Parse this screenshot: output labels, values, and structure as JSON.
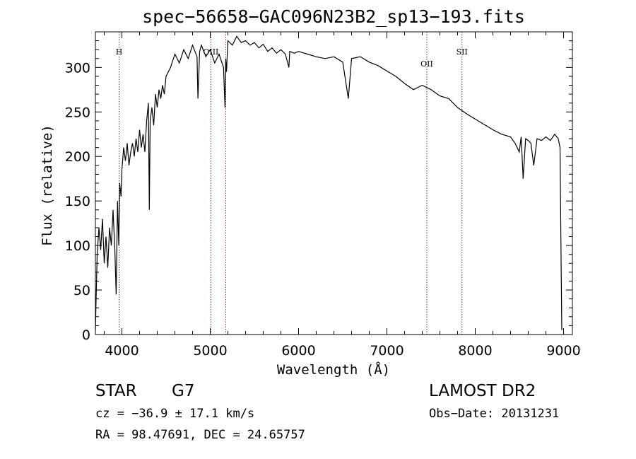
{
  "chart_data": {
    "type": "line",
    "title": "spec−56658−GAC096N23B2_sp13−193.fits",
    "xlabel": "Wavelength (Å)",
    "ylabel": "Flux (relative)",
    "xlim": [
      3700,
      9100
    ],
    "ylim": [
      0,
      340
    ],
    "x_ticks": [
      4000,
      5000,
      6000,
      7000,
      8000,
      9000
    ],
    "y_ticks": [
      0,
      50,
      100,
      150,
      200,
      250,
      300
    ],
    "grid": false,
    "series": [
      {
        "x": [
          3700,
          3720,
          3740,
          3760,
          3780,
          3800,
          3820,
          3840,
          3860,
          3880,
          3900,
          3920,
          3935,
          3950,
          3965,
          3975,
          3990,
          4000,
          4020,
          4040,
          4060,
          4080,
          4100,
          4120,
          4140,
          4160,
          4180,
          4200,
          4220,
          4240,
          4260,
          4280,
          4300,
          4310,
          4320,
          4340,
          4360,
          4380,
          4400,
          4420,
          4440,
          4460,
          4480,
          4500,
          4550,
          4600,
          4650,
          4700,
          4750,
          4800,
          4850,
          4861,
          4880,
          4900,
          4950,
          5000,
          5050,
          5100,
          5150,
          5167,
          5175,
          5184,
          5200,
          5250,
          5300,
          5350,
          5400,
          5450,
          5500,
          5550,
          5600,
          5650,
          5700,
          5750,
          5800,
          5850,
          5890,
          5900,
          5950,
          6000,
          6100,
          6200,
          6300,
          6400,
          6500,
          6563,
          6600,
          6700,
          6800,
          6900,
          7000,
          7100,
          7200,
          7300,
          7400,
          7500,
          7600,
          7700,
          7800,
          7900,
          8000,
          8100,
          8200,
          8300,
          8400,
          8450,
          8498,
          8520,
          8542,
          8570,
          8600,
          8630,
          8662,
          8700,
          8750,
          8800,
          8850,
          8900,
          8940,
          8960,
          8970,
          8980
        ],
        "y": [
          5,
          90,
          120,
          95,
          130,
          80,
          110,
          75,
          120,
          100,
          140,
          95,
          45,
          150,
          100,
          170,
          155,
          185,
          210,
          195,
          215,
          190,
          205,
          215,
          200,
          220,
          205,
          230,
          210,
          225,
          205,
          240,
          260,
          140,
          240,
          255,
          235,
          270,
          255,
          275,
          265,
          280,
          270,
          290,
          300,
          315,
          305,
          320,
          310,
          325,
          312,
          265,
          318,
          325,
          312,
          320,
          305,
          315,
          300,
          255,
          310,
          295,
          330,
          325,
          335,
          328,
          330,
          325,
          328,
          322,
          326,
          318,
          322,
          316,
          320,
          315,
          300,
          318,
          316,
          318,
          315,
          312,
          310,
          312,
          306,
          265,
          310,
          312,
          306,
          302,
          296,
          290,
          282,
          275,
          280,
          275,
          268,
          265,
          255,
          248,
          242,
          236,
          230,
          225,
          222,
          215,
          205,
          222,
          175,
          220,
          218,
          215,
          190,
          220,
          218,
          222,
          218,
          225,
          220,
          210,
          100,
          5
        ]
      }
    ],
    "reference_lines": [
      {
        "x": 3968,
        "label": "H"
      },
      {
        "x": 5007,
        "label": "OIII"
      },
      {
        "x": 5175,
        "label": ""
      },
      {
        "x": 7452,
        "label": "OII"
      },
      {
        "x": 7850,
        "label": "SII"
      }
    ]
  },
  "info": {
    "object_class": "STAR",
    "subclass": "G7",
    "survey": "LAMOST DR2",
    "redshift": "cz = −36.9 ± 17.1 km/s",
    "obs_date": "Obs−Date: 20131231",
    "coords": "RA =  98.47691, DEC =  24.65757"
  },
  "colors": {
    "spectrum": "#000000",
    "reference_line": "#a01818",
    "axes": "#000000"
  }
}
